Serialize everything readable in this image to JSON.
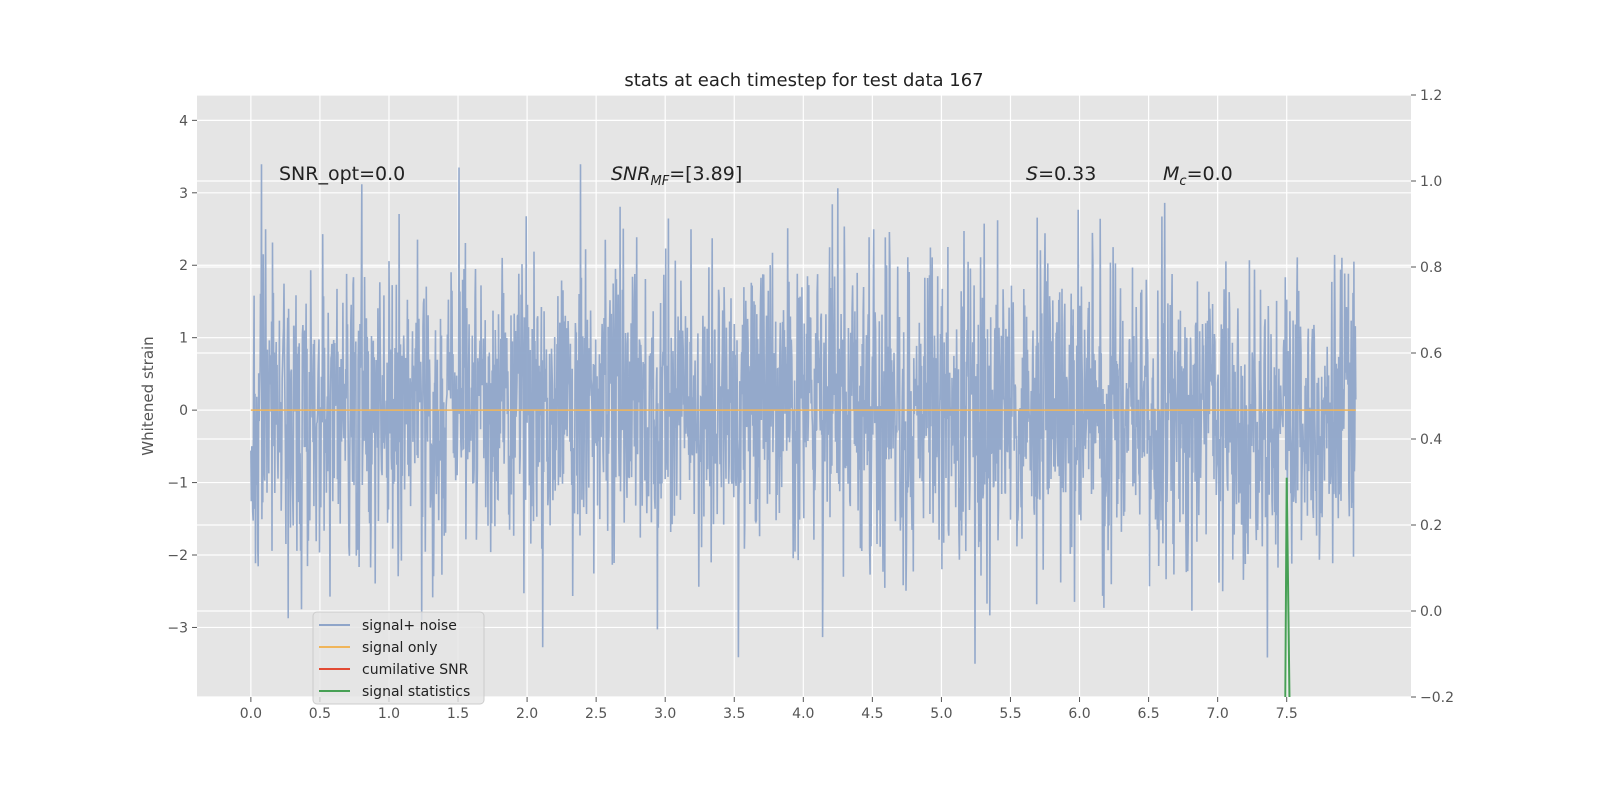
{
  "chart_data": {
    "type": "line",
    "title": "stats at each timestep for test data 167",
    "ylabel": "Whitened strain",
    "xlabel": "",
    "xlim": [
      -0.39,
      8.4
    ],
    "ylim": [
      -3.96,
      4.35
    ],
    "y2lim": [
      -0.2,
      1.2
    ],
    "xticks": [
      "0.0",
      "0.5",
      "1.0",
      "1.5",
      "2.0",
      "2.5",
      "3.0",
      "3.5",
      "4.0",
      "4.5",
      "5.0",
      "5.5",
      "6.0",
      "6.5",
      "7.0",
      "7.5"
    ],
    "yticks": [
      "−3",
      "−2",
      "−1",
      "0",
      "1",
      "2",
      "3",
      "4"
    ],
    "y2ticks": [
      "−0.2",
      "0.0",
      "0.2",
      "0.4",
      "0.6",
      "0.8",
      "1.0",
      "1.2"
    ],
    "grid": true,
    "legend_position": "lower-left",
    "series": [
      {
        "name": "signal+ noise",
        "color": "#8fa5c9",
        "axis": "left",
        "x_range": [
          0,
          8
        ],
        "approx_std": 1.0,
        "approx_max": 4.0,
        "approx_min": -3.5
      },
      {
        "name": "signal only",
        "color": "#f0b55a",
        "axis": "left",
        "x": [
          0,
          8
        ],
        "y": [
          0,
          0
        ]
      },
      {
        "name": "cumilative SNR",
        "color": "#e24a33",
        "axis": "right",
        "x": [],
        "y": []
      },
      {
        "name": "signal statistics",
        "color": "#47a055",
        "axis": "right",
        "x": [
          7.49,
          7.5,
          7.52
        ],
        "y": [
          -0.3,
          0.31,
          -0.3
        ]
      }
    ],
    "annotations": [
      {
        "text": "SNR_opt=0.0",
        "x": 0.2,
        "y": 3.2
      },
      {
        "text": "SNR",
        "sub": "MF",
        "suffix": "=[3.89]",
        "x": 2.6,
        "y": 3.2
      },
      {
        "text": "S",
        "suffix": "=0.33",
        "x": 5.6,
        "y": 3.2
      },
      {
        "text": "M",
        "sub": "c",
        "suffix": "=0.0",
        "x": 6.6,
        "y": 3.2
      }
    ]
  }
}
